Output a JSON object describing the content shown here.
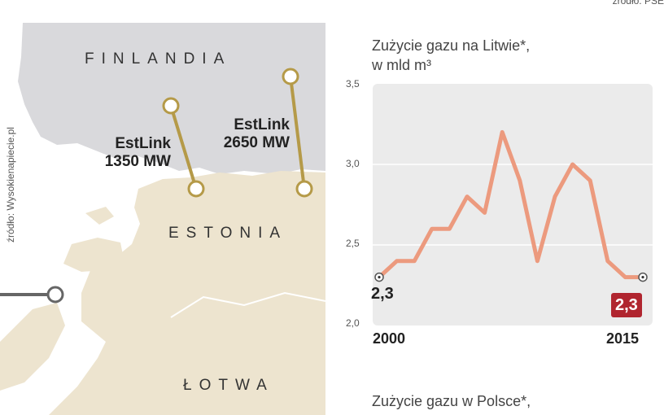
{
  "sources": {
    "map": "źródło: Wysokienapiecie.pl",
    "top": "źródło: PSE"
  },
  "map": {
    "countries": {
      "finland": "FINLANDIA",
      "estonia": "ESTONIA",
      "latvia": "ŁOTWA"
    },
    "links": [
      {
        "name": "EstLink",
        "capacity": "1350 MW"
      },
      {
        "name": "EstLink",
        "capacity": "2650 MW"
      }
    ],
    "colors": {
      "sea": "#ffffff",
      "finland_land": "#d9d9dc",
      "baltic_land": "#ede4cf",
      "link_line": "#b59a48"
    }
  },
  "chart_data": {
    "type": "line",
    "title": "Zużycie gazu na Litwie*,",
    "subtitle": "w mld m³",
    "x": [
      2000,
      2001,
      2002,
      2003,
      2004,
      2005,
      2006,
      2007,
      2008,
      2009,
      2010,
      2011,
      2012,
      2013,
      2014,
      2015
    ],
    "series": [
      {
        "values": [
          2.3,
          2.4,
          2.4,
          2.6,
          2.6,
          2.8,
          2.7,
          3.2,
          2.9,
          2.4,
          2.8,
          3.0,
          2.9,
          2.4,
          2.3,
          2.3
        ]
      }
    ],
    "ylim": [
      2.0,
      3.5
    ],
    "yticks": [
      "2,0",
      "2,5",
      "3,0",
      "3,5"
    ],
    "xtick_labels": {
      "start": "2000",
      "end": "2015"
    },
    "value_labels": {
      "start": "2,3",
      "end": "2,3"
    },
    "grid": true,
    "colors": {
      "line": "#ec9a7e",
      "plot_bg": "#ebebeb",
      "end_badge": "#b0252f"
    }
  },
  "next_chart": {
    "title": "Zużycie gazu w Polsce*,"
  }
}
